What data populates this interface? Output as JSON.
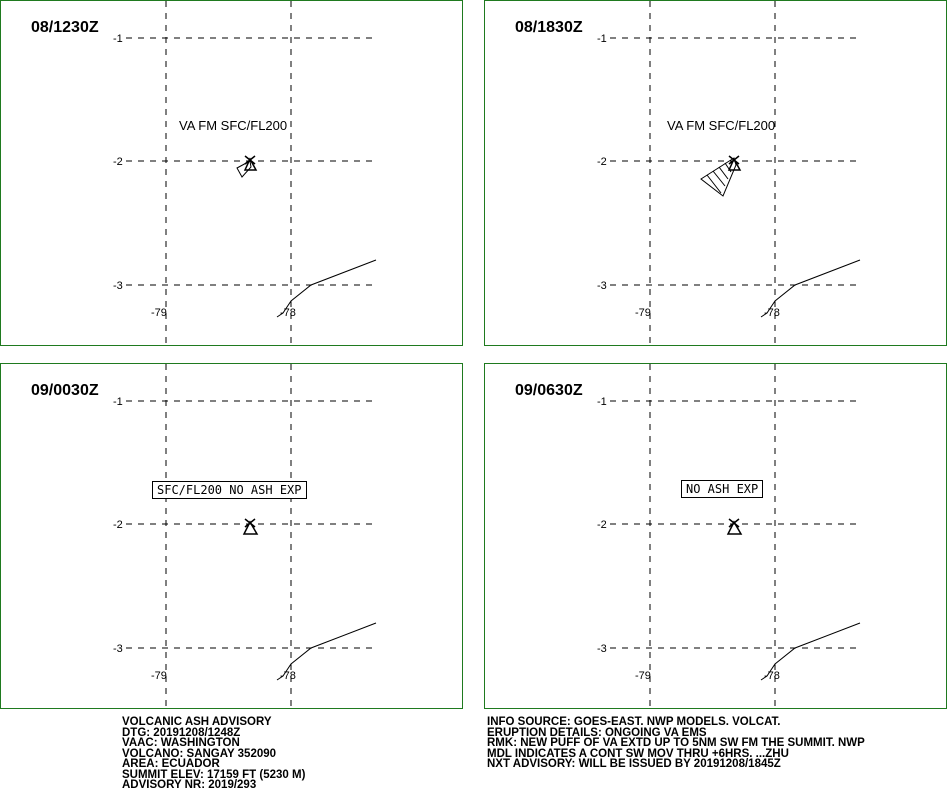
{
  "panels": [
    {
      "title": "08/1230Z",
      "annotation": "VA FM SFC/FL200",
      "annotation_boxed": false,
      "ash_plume": "small"
    },
    {
      "title": "08/1830Z",
      "annotation": "VA FM SFC/FL200",
      "annotation_boxed": false,
      "ash_plume": "extended-sw"
    },
    {
      "title": "09/0030Z",
      "annotation": "SFC/FL200 NO ASH EXP",
      "annotation_boxed": true,
      "ash_plume": "none"
    },
    {
      "title": "09/0630Z",
      "annotation": "NO ASH EXP",
      "annotation_boxed": true,
      "ash_plume": "none"
    }
  ],
  "grid": {
    "lat_labels": [
      "-1",
      "-2",
      "-3"
    ],
    "lon_labels": [
      "-79",
      "-78"
    ]
  },
  "advisory_left": {
    "line1": "VOLCANIC ASH ADVISORY",
    "line2": "DTG: 20191208/1248Z",
    "line3": "VAAC: WASHINGTON",
    "line4": "VOLCANO: SANGAY 352090",
    "line5": "AREA: ECUADOR",
    "line6": "SUMMIT ELEV: 17159 FT (5230 M)",
    "line7": "ADVISORY NR: 2019/293"
  },
  "advisory_right": {
    "line1": "INFO SOURCE: GOES-EAST. NWP MODELS. VOLCAT.",
    "line2": "ERUPTION DETAILS: ONGOING VA EMS",
    "line3": "RMK: NEW PUFF OF VA EXTD UP TO 5NM SW FM THE SUMMIT. NWP",
    "line4": "MDL INDICATES A CONT SW MOV THRU +6HRS. ...ZHU",
    "line5": "NXT ADVISORY: WILL BE ISSUED BY 20191208/1845Z"
  },
  "colors": {
    "panel_border": "#1f7a1f",
    "lines": "#000000"
  }
}
